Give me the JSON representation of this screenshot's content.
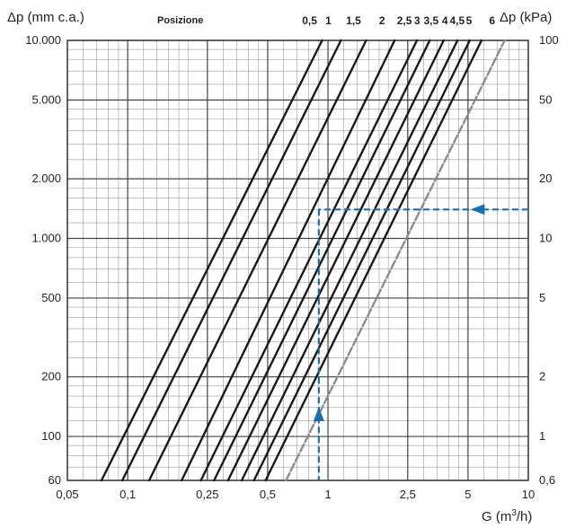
{
  "chart_data": {
    "type": "line",
    "xscale": "log",
    "yscale": "log",
    "xlabel": "G (m3/h)",
    "ylabel_left": "Δp (mm c.a.)",
    "ylabel_right": "Δp (kPa)",
    "header_label": "Posizione",
    "xlim": [
      0.05,
      10
    ],
    "ylim": [
      60,
      10000
    ],
    "x_ticks": [
      {
        "value": 0.05,
        "label": "0,05"
      },
      {
        "value": 0.1,
        "label": "0,1"
      },
      {
        "value": 0.25,
        "label": "0,25"
      },
      {
        "value": 0.5,
        "label": "0,5"
      },
      {
        "value": 1,
        "label": "1"
      },
      {
        "value": 2.5,
        "label": "2,5"
      },
      {
        "value": 5,
        "label": "5"
      },
      {
        "value": 10,
        "label": "10"
      }
    ],
    "y_ticks_left": [
      {
        "value": 60,
        "label": "60"
      },
      {
        "value": 100,
        "label": "100"
      },
      {
        "value": 200,
        "label": "200"
      },
      {
        "value": 500,
        "label": "500"
      },
      {
        "value": 1000,
        "label": "1.000"
      },
      {
        "value": 2000,
        "label": "2.000"
      },
      {
        "value": 5000,
        "label": "5.000"
      },
      {
        "value": 10000,
        "label": "10.000"
      }
    ],
    "y_ticks_right": [
      {
        "value": 60,
        "label": "0,6"
      },
      {
        "value": 100,
        "label": "1"
      },
      {
        "value": 200,
        "label": "2"
      },
      {
        "value": 500,
        "label": "5"
      },
      {
        "value": 1000,
        "label": "10"
      },
      {
        "value": 2000,
        "label": "20"
      },
      {
        "value": 5000,
        "label": "50"
      },
      {
        "value": 10000,
        "label": "100"
      }
    ],
    "grid": true,
    "series": [
      {
        "name": "0,5",
        "x": [
          0.074,
          0.935
        ],
        "y": [
          60,
          10000
        ],
        "color": "#1a1a1a"
      },
      {
        "name": "1",
        "x": [
          0.094,
          1.16
        ],
        "y": [
          60,
          10000
        ],
        "color": "#1a1a1a"
      },
      {
        "name": "1,5",
        "x": [
          0.128,
          1.55
        ],
        "y": [
          60,
          10000
        ],
        "color": "#1a1a1a"
      },
      {
        "name": "2",
        "x": [
          0.186,
          2.15
        ],
        "y": [
          60,
          10000
        ],
        "color": "#1a1a1a"
      },
      {
        "name": "2,5",
        "x": [
          0.232,
          2.78
        ],
        "y": [
          60,
          10000
        ],
        "color": "#1a1a1a"
      },
      {
        "name": "3",
        "x": [
          0.27,
          3.22
        ],
        "y": [
          60,
          10000
        ],
        "color": "#1a1a1a"
      },
      {
        "name": "3,5",
        "x": [
          0.317,
          3.78
        ],
        "y": [
          60,
          10000
        ],
        "color": "#1a1a1a"
      },
      {
        "name": "4",
        "x": [
          0.371,
          4.43
        ],
        "y": [
          60,
          10000
        ],
        "color": "#1a1a1a"
      },
      {
        "name": "4,5",
        "x": [
          0.427,
          5.1
        ],
        "y": [
          60,
          10000
        ],
        "color": "#1a1a1a"
      },
      {
        "name": "5",
        "x": [
          0.488,
          5.84
        ],
        "y": [
          60,
          10000
        ],
        "color": "#1a1a1a"
      },
      {
        "name": "6",
        "x": [
          0.617,
          7.62
        ],
        "y": [
          60,
          10000
        ],
        "color": "#8c8c8c",
        "dashed": true
      }
    ],
    "annotation": {
      "type": "reading-example",
      "x": 0.9,
      "y": 1400,
      "color": "#1a6fb3"
    }
  }
}
